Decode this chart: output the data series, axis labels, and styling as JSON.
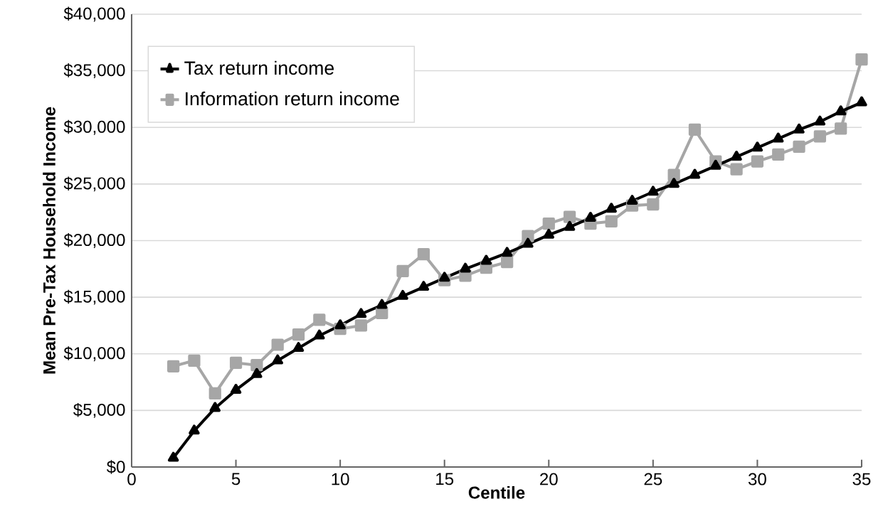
{
  "chart_data": {
    "type": "line",
    "xlabel": "Centile",
    "ylabel": "Mean Pre-Tax Household Income",
    "x": [
      2,
      3,
      4,
      5,
      6,
      7,
      8,
      9,
      10,
      11,
      12,
      13,
      14,
      15,
      16,
      17,
      18,
      19,
      20,
      21,
      22,
      23,
      24,
      25,
      26,
      27,
      28,
      29,
      30,
      31,
      32,
      33,
      34,
      35
    ],
    "series": [
      {
        "name": "Tax return income",
        "color": "#000000",
        "marker": "triangle",
        "values": [
          800,
          3200,
          5200,
          6800,
          8200,
          9400,
          10500,
          11600,
          12500,
          13500,
          14300,
          15100,
          15900,
          16700,
          17500,
          18200,
          18900,
          19700,
          20500,
          21200,
          22000,
          22800,
          23500,
          24300,
          25000,
          25800,
          26600,
          27400,
          28200,
          29000,
          29800,
          30500,
          31400,
          32200
        ]
      },
      {
        "name": "Information return income",
        "color": "#a6a6a6",
        "marker": "square",
        "values": [
          8900,
          9400,
          6500,
          9200,
          9000,
          10800,
          11700,
          13000,
          12200,
          12500,
          13600,
          17300,
          18800,
          16500,
          16900,
          17600,
          18100,
          20400,
          21500,
          22100,
          21500,
          21700,
          23100,
          23200,
          25800,
          29800,
          27000,
          26300,
          27000,
          27600,
          28300,
          29200,
          29900,
          36000
        ]
      }
    ],
    "xlim": [
      0,
      35
    ],
    "xticks": [
      0,
      5,
      10,
      15,
      20,
      25,
      30,
      35
    ],
    "ylim": [
      0,
      40000
    ],
    "yticks": [
      {
        "value": 0,
        "label": "$0"
      },
      {
        "value": 5000,
        "label": "$5,000"
      },
      {
        "value": 10000,
        "label": "$10,000"
      },
      {
        "value": 15000,
        "label": "$15,000"
      },
      {
        "value": 20000,
        "label": "$20,000"
      },
      {
        "value": 25000,
        "label": "$25,000"
      },
      {
        "value": 30000,
        "label": "$30,000"
      },
      {
        "value": 35000,
        "label": "$35,000"
      },
      {
        "value": 40000,
        "label": "$40,000"
      }
    ],
    "grid": "y",
    "legend": "top left",
    "line_style": "solid"
  }
}
